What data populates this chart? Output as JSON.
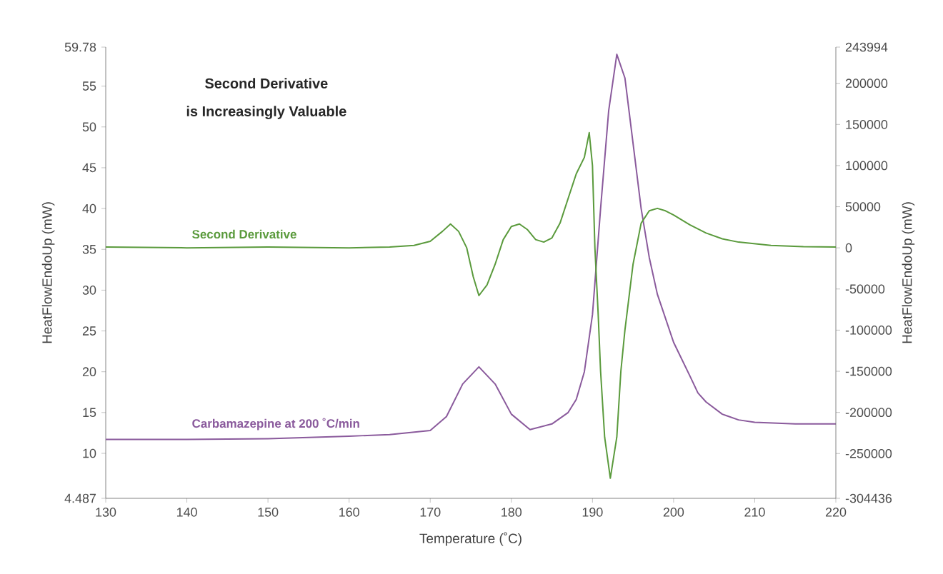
{
  "chart_data": {
    "type": "line",
    "annotations": [
      "Second Derivative",
      "is Increasingly Valuable"
    ],
    "xlabel": "Temperature (˚C)",
    "ylabel": "HeatFlowEndoUp (mW)",
    "y2label": "HeatFlowEndoUp (mW)",
    "xlim": [
      130,
      220
    ],
    "xticks": [
      130,
      140,
      150,
      160,
      170,
      180,
      190,
      200,
      210,
      220
    ],
    "ylim": [
      4.487,
      59.78
    ],
    "yticks": [
      4.487,
      10,
      15,
      20,
      25,
      30,
      35,
      40,
      45,
      50,
      55,
      59.78
    ],
    "y2lim": [
      -304436,
      243994
    ],
    "y2ticks": [
      -304436,
      -250000,
      -200000,
      -150000,
      -100000,
      -50000,
      0,
      50000,
      100000,
      150000,
      200000,
      243994
    ],
    "marker": "none",
    "line_style": "solid",
    "grid": false,
    "series": [
      {
        "name": "Carbamazepine at 200 ˚C/min",
        "color": "#8a5a9c",
        "x": [
          130,
          140,
          150,
          160,
          165,
          170,
          172,
          174,
          176,
          178,
          180,
          182.3,
          185,
          187,
          188,
          189,
          190,
          191,
          192,
          193,
          194,
          195,
          196,
          197,
          198,
          200,
          202,
          203,
          204,
          206,
          208,
          210,
          215,
          220
        ],
        "values": [
          11.7,
          11.7,
          11.8,
          12.1,
          12.3,
          12.8,
          14.5,
          18.5,
          20.6,
          18.5,
          14.8,
          12.9,
          13.6,
          15,
          16.6,
          20,
          27,
          40,
          52,
          58.9,
          56,
          48,
          40,
          34,
          29.5,
          23.6,
          19.5,
          17.4,
          16.3,
          14.8,
          14.1,
          13.8,
          13.6,
          13.6
        ]
      },
      {
        "name": "Second Derivative",
        "color": "#5a9a3c",
        "axis": "y2",
        "x": [
          130,
          140,
          150,
          160,
          165,
          168,
          170,
          171.5,
          172.5,
          173.5,
          174.5,
          175.3,
          176,
          177,
          178,
          179,
          180,
          181,
          182,
          183,
          184,
          185,
          186,
          187,
          188,
          189,
          189.6,
          190,
          190.3,
          190.7,
          191,
          191.5,
          192.2,
          193,
          193.5,
          194,
          195,
          196,
          197,
          198,
          199,
          200,
          202,
          204,
          206,
          208,
          212,
          216,
          220
        ],
        "values": [
          1000,
          0,
          1000,
          0,
          1000,
          3000,
          8000,
          20000,
          29000,
          20000,
          0,
          -35000,
          -58000,
          -45000,
          -20000,
          10000,
          26000,
          29000,
          22000,
          10000,
          7000,
          12000,
          30000,
          60000,
          90000,
          110000,
          140000,
          100000,
          0,
          -80000,
          -150000,
          -230000,
          -280000,
          -230000,
          -150000,
          -100000,
          -20000,
          30000,
          45000,
          48000,
          45000,
          40000,
          28000,
          18000,
          11000,
          7000,
          3000,
          1500,
          1000
        ]
      }
    ]
  }
}
